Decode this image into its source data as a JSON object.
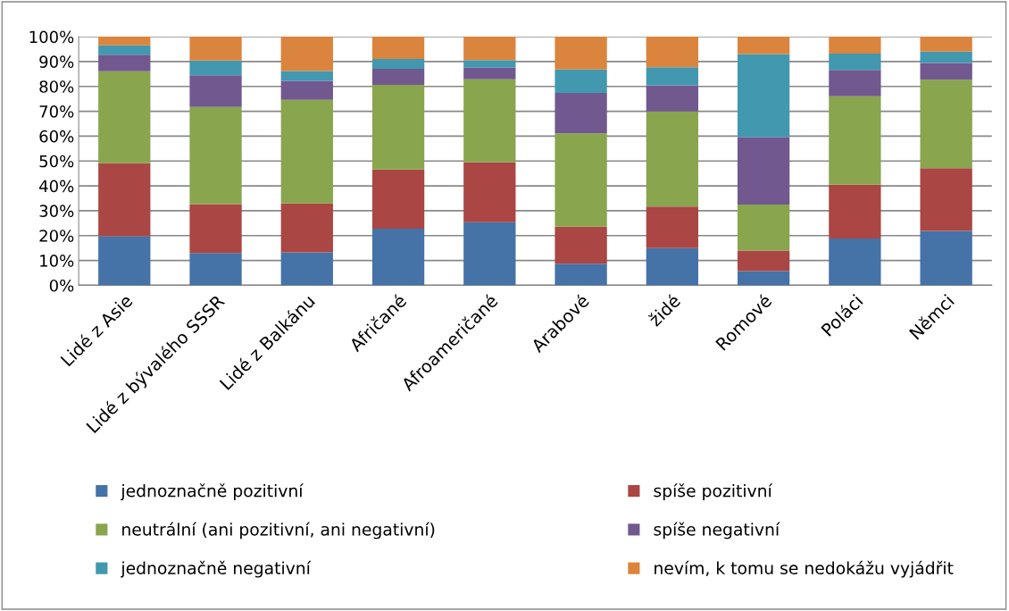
{
  "chart_data": {
    "type": "bar",
    "stacked": true,
    "categories": [
      "Lidé z Asie",
      "Lidé z bývalého SSSR",
      "Lidé z Balkánu",
      "Afričané",
      "Afroameričané",
      "Arabové",
      "židé",
      "Romové",
      "Poláci",
      "Němci"
    ],
    "series": [
      {
        "name": "jednoznačně pozitivní",
        "color": "#4572a7",
        "values": [
          19.7,
          13.0,
          13.3,
          22.8,
          25.4,
          8.7,
          15.0,
          5.7,
          18.8,
          21.9
        ]
      },
      {
        "name": "spíše pozitivní",
        "color": "#aa4643",
        "values": [
          29.4,
          19.7,
          19.6,
          23.8,
          24.1,
          14.9,
          16.7,
          8.3,
          21.7,
          25.2
        ]
      },
      {
        "name": "neutrální (ani pozitivní, ani negativní)",
        "color": "#89a54e",
        "values": [
          37.0,
          39.0,
          41.7,
          34.0,
          33.4,
          37.5,
          38.2,
          18.5,
          35.5,
          35.6
        ]
      },
      {
        "name": "spíše negativní",
        "color": "#71588f",
        "values": [
          6.6,
          12.8,
          7.6,
          6.5,
          4.7,
          16.3,
          10.5,
          27.1,
          10.6,
          6.7
        ]
      },
      {
        "name": "jednoznačně negativní",
        "color": "#4198af",
        "values": [
          3.8,
          5.9,
          4.0,
          3.9,
          3.0,
          9.4,
          7.3,
          33.4,
          6.6,
          4.6
        ]
      },
      {
        "name": "nevím, k tomu se nedokážu vyjádřit",
        "color": "#db843d",
        "values": [
          3.5,
          9.6,
          13.8,
          9.0,
          9.4,
          13.2,
          12.3,
          7.0,
          6.8,
          6.0
        ]
      }
    ],
    "ylim": [
      0,
      100
    ],
    "yticks": [
      {
        "value": 0,
        "label": "0%"
      },
      {
        "value": 10,
        "label": "10%"
      },
      {
        "value": 20,
        "label": "20%"
      },
      {
        "value": 30,
        "label": "30%"
      },
      {
        "value": 40,
        "label": "40%"
      },
      {
        "value": 50,
        "label": "50%"
      },
      {
        "value": 60,
        "label": "60%"
      },
      {
        "value": 70,
        "label": "70%"
      },
      {
        "value": 80,
        "label": "80%"
      },
      {
        "value": 90,
        "label": "90%"
      },
      {
        "value": 100,
        "label": "100%"
      }
    ],
    "grid": "y",
    "legend": "bottom"
  }
}
